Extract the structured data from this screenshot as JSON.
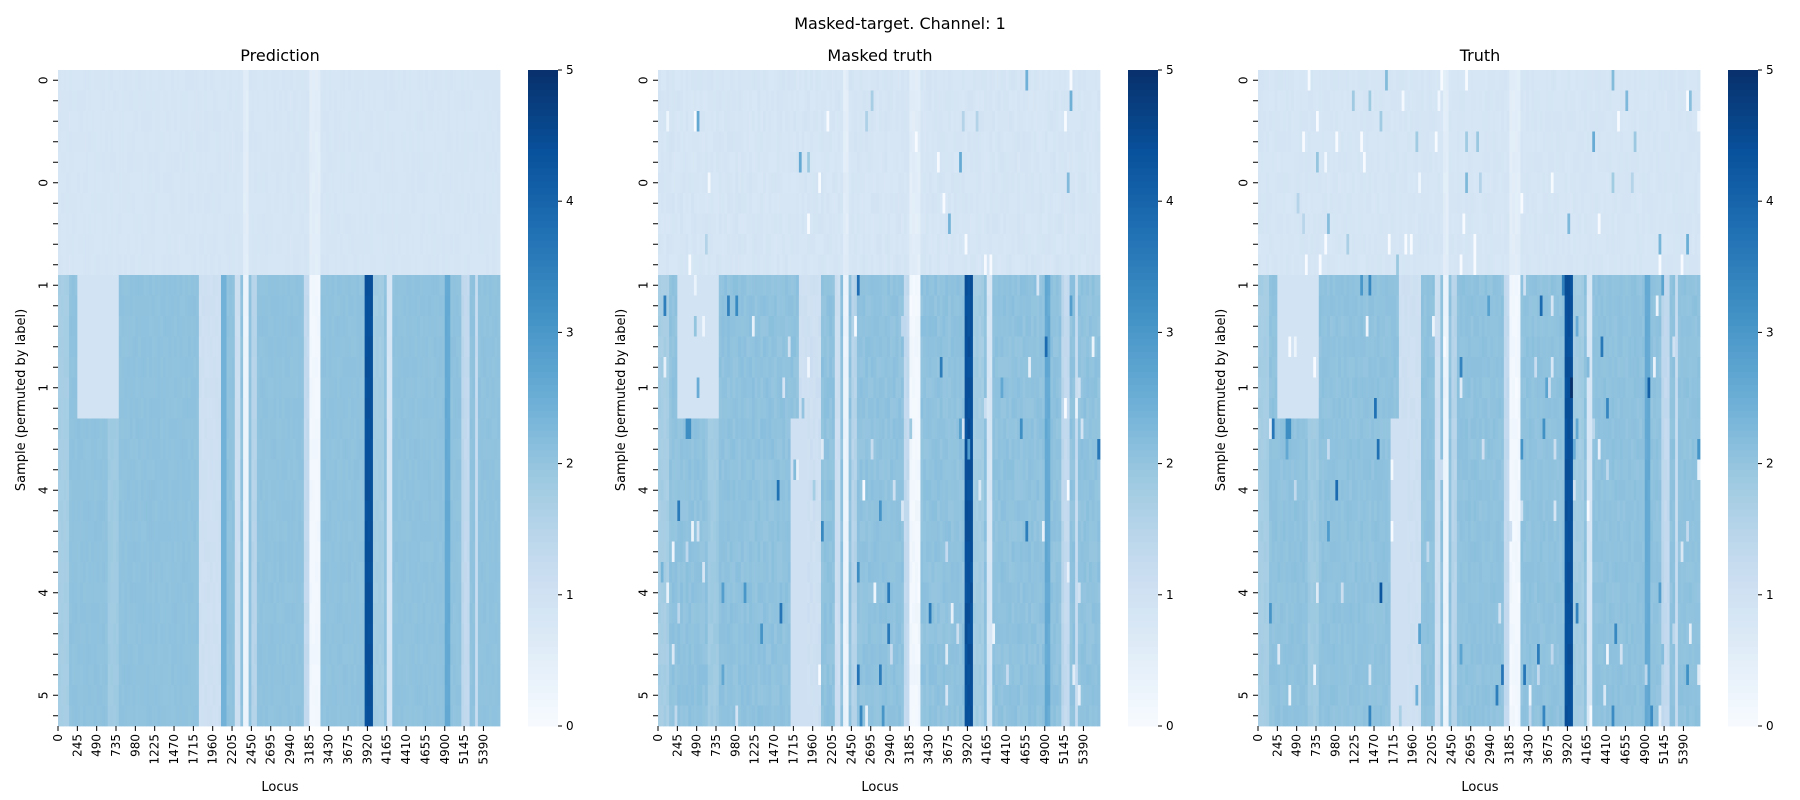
{
  "chart_data": {
    "type": "heatmap",
    "suptitle": "Masked-target. Channel: 1",
    "colormap": "Blues",
    "colorbar": {
      "min": 0,
      "max": 5,
      "ticks": [
        "0",
        "1",
        "2",
        "3",
        "4",
        "5"
      ]
    },
    "xlabel": "Locus",
    "ylabel": "Sample (permuted by label)",
    "x_tick_labels": [
      "0",
      "245",
      "490",
      "735",
      "980",
      "1225",
      "1470",
      "1715",
      "1960",
      "2205",
      "2450",
      "2695",
      "2940",
      "3185",
      "3430",
      "3675",
      "3920",
      "4165",
      "4410",
      "4655",
      "4900",
      "5145",
      "5390"
    ],
    "y_tick_labels": [
      "0",
      "0",
      "1",
      "1",
      "4",
      "4",
      "5"
    ],
    "n_loci": 5600,
    "n_samples": 32,
    "groups": [
      {
        "label": "0",
        "rows": 10,
        "base": 0.85
      },
      {
        "label": "1",
        "rows": 7,
        "base": 2.05
      },
      {
        "label": "4",
        "rows": 15,
        "base": 2.05
      }
    ],
    "locus_bands": [
      {
        "start": 0,
        "end": 150,
        "value": 1.75
      },
      {
        "start": 620,
        "end": 760,
        "value": 1.85
      },
      {
        "start": 1800,
        "end": 2050,
        "value": 1.05
      },
      {
        "start": 2250,
        "end": 2320,
        "value": 1.1
      },
      {
        "start": 2350,
        "end": 2420,
        "value": 0.3
      },
      {
        "start": 2440,
        "end": 2520,
        "value": 1.5
      },
      {
        "start": 3120,
        "end": 3180,
        "value": 1.3
      },
      {
        "start": 3180,
        "end": 3330,
        "value": 0.15
      },
      {
        "start": 3880,
        "end": 3990,
        "value": 4.4
      },
      {
        "start": 4000,
        "end": 4120,
        "value": 1.8
      },
      {
        "start": 4150,
        "end": 4230,
        "value": 0.8
      },
      {
        "start": 4900,
        "end": 4960,
        "value": 2.6
      },
      {
        "start": 5100,
        "end": 5150,
        "value": 1.4
      },
      {
        "start": 5160,
        "end": 5230,
        "value": 1.3
      },
      {
        "start": 5290,
        "end": 5330,
        "value": 1.2
      }
    ],
    "panels": [
      {
        "title": "Prediction",
        "has_colorbar": true,
        "noise": 0.04,
        "spikes": 0,
        "patches": [
          {
            "loci": [
              230,
              760
            ],
            "rows": [
              10,
              17
            ],
            "value": 0.95
          },
          {
            "loci": [
              2050,
              2120
            ],
            "rows": [
              10,
              32
            ],
            "value": 2.4
          }
        ]
      },
      {
        "title": "Masked truth",
        "has_colorbar": true,
        "noise": 0.08,
        "spikes": 120,
        "patches": [
          {
            "loci": [
              240,
              760
            ],
            "rows": [
              10,
              17
            ],
            "value": 0.95
          },
          {
            "loci": [
              350,
              420
            ],
            "rows": [
              17,
              18
            ],
            "value": 3.2
          },
          {
            "loci": [
              1680,
              1880
            ],
            "rows": [
              17,
              32
            ],
            "value": 1.05
          }
        ]
      },
      {
        "title": "Truth",
        "has_colorbar": false,
        "noise": 0.06,
        "spikes": 160,
        "patches": [
          {
            "loci": [
              240,
              760
            ],
            "rows": [
              10,
              17
            ],
            "value": 0.95
          },
          {
            "loci": [
              350,
              420
            ],
            "rows": [
              17,
              18
            ],
            "value": 3.2
          },
          {
            "loci": [
              1680,
              1880
            ],
            "rows": [
              17,
              32
            ],
            "value": 1.05
          }
        ]
      }
    ]
  }
}
